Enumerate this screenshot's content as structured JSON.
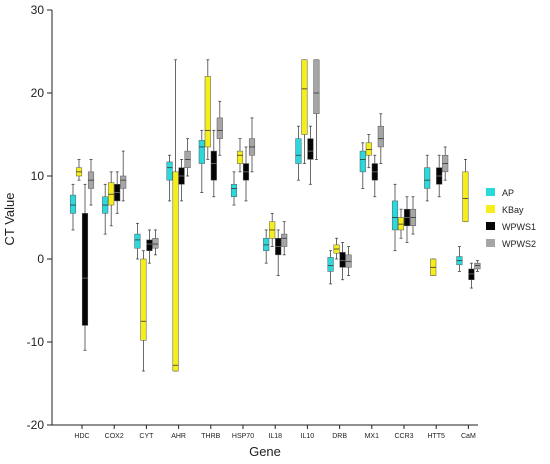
{
  "chart_data": {
    "type": "boxplot",
    "xlabel": "Gene",
    "ylabel": "CT Value",
    "ylim": [
      -20,
      30
    ],
    "yticks": [
      -20,
      -10,
      0,
      10,
      20,
      30
    ],
    "grid": false,
    "legend_position": "right",
    "categories": [
      "HDC",
      "COX2",
      "CYT",
      "AHR",
      "THRB",
      "HSP70",
      "IL18",
      "IL10",
      "DRB",
      "MX1",
      "CCR3",
      "HTT5",
      "CaM"
    ],
    "series": [
      {
        "name": "AP",
        "color": "#2bd9dc",
        "boxes": [
          {
            "min": 3.5,
            "q1": 5.5,
            "median": 6.5,
            "q3": 7.7,
            "max": 9
          },
          {
            "min": 3,
            "q1": 5.5,
            "median": 6.5,
            "q3": 7.5,
            "max": 9
          },
          {
            "min": 0,
            "q1": 1.3,
            "median": 2.3,
            "q3": 3,
            "max": 4.3
          },
          {
            "min": 7,
            "q1": 9.5,
            "median": 11,
            "q3": 11.7,
            "max": 12.5
          },
          {
            "min": 8,
            "q1": 11.5,
            "median": 13.5,
            "q3": 14.3,
            "max": 15.5
          },
          {
            "min": 6.5,
            "q1": 7.5,
            "median": 8.5,
            "q3": 9,
            "max": 10.5
          },
          {
            "min": -0.5,
            "q1": 1,
            "median": 1.7,
            "q3": 2.5,
            "max": 3.5
          },
          {
            "min": 9.5,
            "q1": 11.5,
            "median": 12.5,
            "q3": 14.5,
            "max": 16
          },
          {
            "min": -3,
            "q1": -1.5,
            "median": -0.8,
            "q3": 0.2,
            "max": 1
          },
          {
            "min": 8.5,
            "q1": 10.5,
            "median": 12,
            "q3": 13,
            "max": 14
          },
          {
            "min": 1,
            "q1": 3.5,
            "median": 5,
            "q3": 7,
            "max": 9
          },
          {
            "min": 7,
            "q1": 8.5,
            "median": 9.5,
            "q3": 11,
            "max": 12.5
          },
          {
            "min": -1.5,
            "q1": -0.7,
            "median": -0.2,
            "q3": 0.3,
            "max": 1.5
          }
        ]
      },
      {
        "name": "KBay",
        "color": "#f5ee1b",
        "boxes": [
          {
            "min": 9.5,
            "q1": 10,
            "median": 10.5,
            "q3": 11,
            "max": 12
          },
          {
            "min": 4,
            "q1": 6.5,
            "median": 7.8,
            "q3": 9.2,
            "max": 10.5
          },
          {
            "min": -13.5,
            "q1": -9.8,
            "median": -7.5,
            "q3": 0,
            "max": 1
          },
          {
            "min": -13.5,
            "q1": -13.5,
            "median": -12.8,
            "q3": 10.5,
            "max": 24
          },
          {
            "min": 12,
            "q1": 13.5,
            "median": 15.5,
            "q3": 22,
            "max": 24
          },
          {
            "min": 10.5,
            "q1": 11.5,
            "median": 12.5,
            "q3": 13,
            "max": 14.5
          },
          {
            "min": 1.5,
            "q1": 2.5,
            "median": 3.5,
            "q3": 4.5,
            "max": 5.5
          },
          {
            "min": 11.5,
            "q1": 15,
            "median": 20.5,
            "q3": 24,
            "max": 24
          },
          {
            "min": 0,
            "q1": 0.7,
            "median": 1.2,
            "q3": 1.7,
            "max": 2.5
          },
          {
            "min": 11,
            "q1": 12.5,
            "median": 13.2,
            "q3": 14,
            "max": 15
          },
          {
            "min": 2.5,
            "q1": 3.5,
            "median": 4.2,
            "q3": 5,
            "max": 6
          },
          {
            "min": -2,
            "q1": -2,
            "median": -1,
            "q3": 0,
            "max": 0
          },
          {
            "min": 4.5,
            "q1": 4.5,
            "median": 7.3,
            "q3": 10.5,
            "max": 12
          }
        ]
      },
      {
        "name": "WPWS1",
        "color": "#050505",
        "boxes": [
          {
            "min": -11,
            "q1": -8,
            "median": -2.3,
            "q3": 5.5,
            "max": 9
          },
          {
            "min": 5.5,
            "q1": 7,
            "median": 8,
            "q3": 9,
            "max": 10.5
          },
          {
            "min": -0.5,
            "q1": 1,
            "median": 1.8,
            "q3": 2.3,
            "max": 3.5
          },
          {
            "min": 7,
            "q1": 9,
            "median": 10,
            "q3": 11,
            "max": 12
          },
          {
            "min": 7.5,
            "q1": 9.5,
            "median": 11.5,
            "q3": 13,
            "max": 15.5
          },
          {
            "min": 7,
            "q1": 9.5,
            "median": 10.5,
            "q3": 11.5,
            "max": 13.5
          },
          {
            "min": -2,
            "q1": 0.5,
            "median": 1.5,
            "q3": 2.5,
            "max": 3.5
          },
          {
            "min": 9,
            "q1": 12,
            "median": 13,
            "q3": 14.5,
            "max": 16
          },
          {
            "min": -2.5,
            "q1": -1,
            "median": -0.2,
            "q3": 0.8,
            "max": 2
          },
          {
            "min": 7.5,
            "q1": 9.5,
            "median": 10.5,
            "q3": 11.5,
            "max": 12.5
          },
          {
            "min": 2,
            "q1": 4,
            "median": 5,
            "q3": 6,
            "max": 7.5
          },
          {
            "min": 7.5,
            "q1": 9,
            "median": 10,
            "q3": 11,
            "max": 12.5
          },
          {
            "min": -3.5,
            "q1": -2.5,
            "median": -1.8,
            "q3": -1.2,
            "max": -0.5
          }
        ]
      },
      {
        "name": "WPWS2",
        "color": "#a6a6a6",
        "boxes": [
          {
            "min": 6.5,
            "q1": 8.5,
            "median": 9.5,
            "q3": 10.5,
            "max": 12
          },
          {
            "min": 7,
            "q1": 8.5,
            "median": 9.5,
            "q3": 10,
            "max": 13
          },
          {
            "min": 0.5,
            "q1": 1.3,
            "median": 1.8,
            "q3": 2.5,
            "max": 3.5
          },
          {
            "min": 10,
            "q1": 11,
            "median": 12,
            "q3": 13,
            "max": 14.5
          },
          {
            "min": 12.5,
            "q1": 14.5,
            "median": 15.5,
            "q3": 17,
            "max": 19
          },
          {
            "min": 10.5,
            "q1": 12.5,
            "median": 13.5,
            "q3": 14.5,
            "max": 17
          },
          {
            "min": 0.5,
            "q1": 1.5,
            "median": 2.5,
            "q3": 3,
            "max": 4.5
          },
          {
            "min": 12,
            "q1": 17.5,
            "median": 20,
            "q3": 24,
            "max": 24
          },
          {
            "min": -2,
            "q1": -1,
            "median": -0.3,
            "q3": 0.5,
            "max": 1.5
          },
          {
            "min": 11.5,
            "q1": 13.5,
            "median": 14.5,
            "q3": 16,
            "max": 17.5
          },
          {
            "min": 3,
            "q1": 4,
            "median": 5,
            "q3": 6,
            "max": 7.5
          },
          {
            "min": 9.5,
            "q1": 10.5,
            "median": 11.5,
            "q3": 12.5,
            "max": 13.5
          },
          {
            "min": -1.5,
            "q1": -1.2,
            "median": -0.8,
            "q3": -0.5,
            "max": -0.2
          }
        ]
      }
    ]
  }
}
